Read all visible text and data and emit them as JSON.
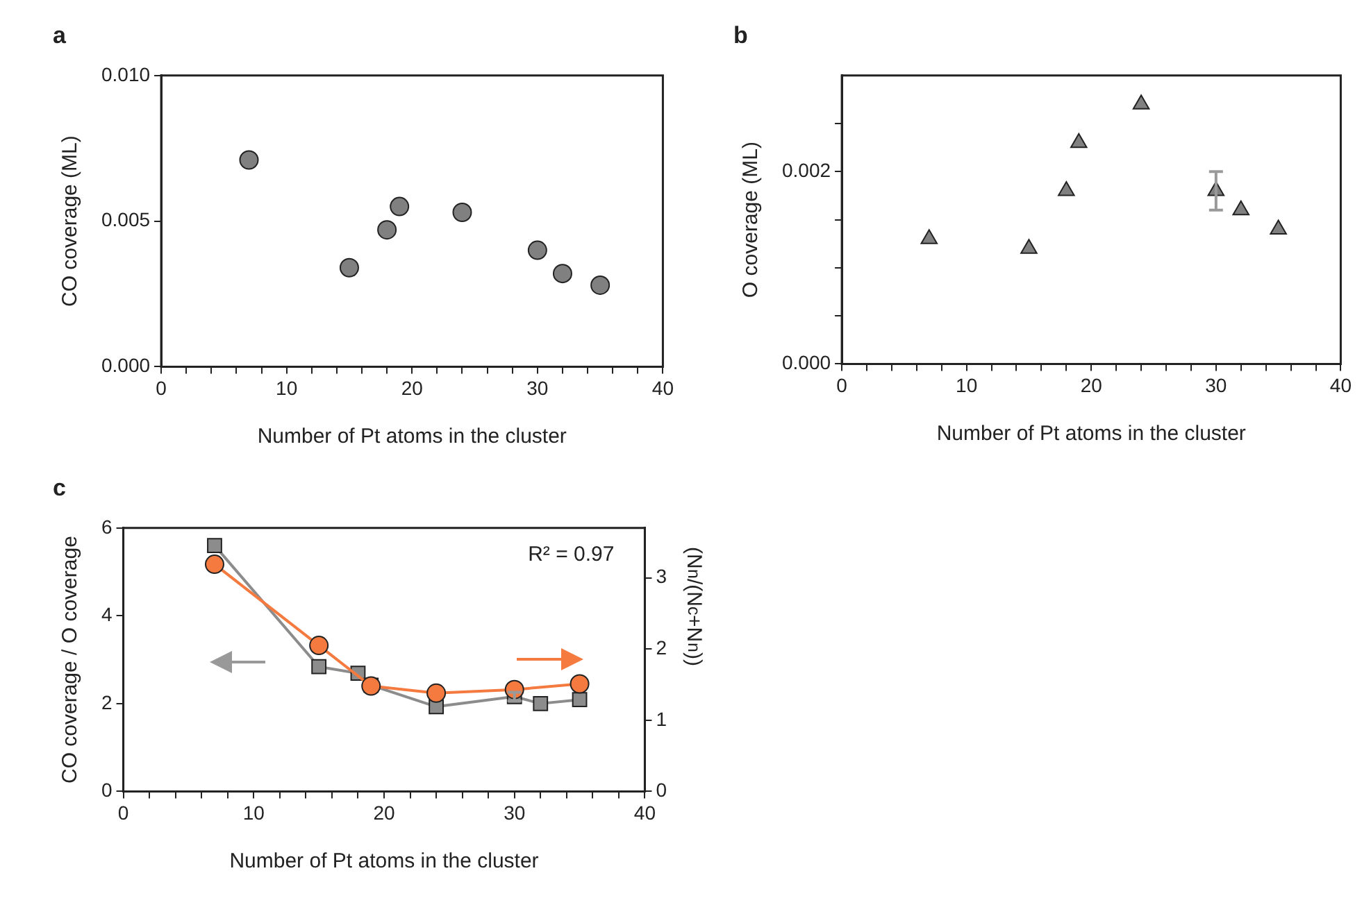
{
  "chart_data": [
    {
      "type": "scatter",
      "title": "a",
      "xlabel": "Number of Pt atoms in the cluster",
      "ylabel": "CO coverage (ML)",
      "marker": "circle",
      "color": "#808080",
      "x": [
        7,
        15,
        18,
        19,
        24,
        30,
        32,
        35
      ],
      "values": [
        0.0071,
        0.0034,
        0.0047,
        0.0055,
        0.0053,
        0.004,
        0.0032,
        0.0028
      ],
      "xlim": [
        0,
        40
      ],
      "xticks": [
        0,
        {
          "value": 2,
          "label": null
        },
        {
          "value": 4,
          "label": null
        },
        {
          "value": 6,
          "label": null
        },
        {
          "value": 8,
          "label": null
        },
        10,
        {
          "value": 12,
          "label": null
        },
        {
          "value": 14,
          "label": null
        },
        {
          "value": 16,
          "label": null
        },
        {
          "value": 18,
          "label": null
        },
        20,
        {
          "value": 22,
          "label": null
        },
        {
          "value": 24,
          "label": null
        },
        {
          "value": 26,
          "label": null
        },
        {
          "value": 28,
          "label": null
        },
        30,
        {
          "value": 32,
          "label": null
        },
        {
          "value": 34,
          "label": null
        },
        {
          "value": 36,
          "label": null
        },
        {
          "value": 38,
          "label": null
        },
        40
      ],
      "ylim": [
        0,
        0.01
      ],
      "yticks": [
        {
          "value": 0,
          "label": "0.000"
        },
        {
          "value": 0.005,
          "label": "0.005"
        },
        {
          "value": 0.01,
          "label": "0.010"
        }
      ],
      "grid": false,
      "legend": false
    },
    {
      "type": "scatter",
      "title": "b",
      "xlabel": "Number of Pt atoms in the cluster",
      "ylabel": "O coverage (ML)",
      "marker": "triangle",
      "color": "#808080",
      "x": [
        7,
        15,
        18,
        19,
        24,
        30,
        32,
        35
      ],
      "values": [
        0.0013,
        0.0012,
        0.0018,
        0.0023,
        0.0027,
        0.0018,
        0.0016,
        0.0014
      ],
      "errors": [
        null,
        null,
        null,
        null,
        null,
        0.0002,
        null,
        null
      ],
      "xlim": [
        0,
        40
      ],
      "xticks": [
        0,
        {
          "value": 2,
          "label": null
        },
        {
          "value": 4,
          "label": null
        },
        {
          "value": 6,
          "label": null
        },
        {
          "value": 8,
          "label": null
        },
        10,
        {
          "value": 12,
          "label": null
        },
        {
          "value": 14,
          "label": null
        },
        {
          "value": 16,
          "label": null
        },
        {
          "value": 18,
          "label": null
        },
        20,
        {
          "value": 22,
          "label": null
        },
        {
          "value": 24,
          "label": null
        },
        {
          "value": 26,
          "label": null
        },
        {
          "value": 28,
          "label": null
        },
        30,
        {
          "value": 32,
          "label": null
        },
        {
          "value": 34,
          "label": null
        },
        {
          "value": 36,
          "label": null
        },
        {
          "value": 38,
          "label": null
        },
        40
      ],
      "ylim": [
        0,
        0.003
      ],
      "yticks": [
        {
          "value": 0,
          "label": "0.000"
        },
        {
          "value": 0.0005,
          "label": null
        },
        {
          "value": 0.001,
          "label": null
        },
        {
          "value": 0.0015,
          "label": null
        },
        {
          "value": 0.002,
          "label": "0.002"
        },
        {
          "value": 0.0025,
          "label": null
        }
      ],
      "grid": false,
      "legend": false
    },
    {
      "type": "line",
      "title": "c",
      "xlabel": "Number of Pt atoms in the cluster",
      "ylabel": "CO coverage / O coverage",
      "y2label": "(N$_{n}$/(N$_{c}$+N$_{n}$))",
      "annotations": [
        "R² = 0.97"
      ],
      "series": [
        {
          "color": "#8c8c8c",
          "marker": "square",
          "x": [
            7,
            15,
            18,
            19,
            24,
            30,
            32,
            35
          ],
          "values": [
            5.6,
            2.84,
            2.69,
            2.42,
            1.93,
            2.16,
            2.0,
            2.09
          ],
          "errors": [
            null,
            null,
            null,
            null,
            null,
            0.1,
            null,
            null
          ]
        },
        {
          "color": "#f47a3f",
          "marker": "circle",
          "axis": "y2",
          "x": [
            7,
            15,
            19,
            24,
            30,
            35
          ],
          "values": [
            3.19,
            2.05,
            1.48,
            1.38,
            1.43,
            1.51
          ]
        }
      ],
      "xlim": [
        0,
        40
      ],
      "xticks": [
        0,
        {
          "value": 2,
          "label": null
        },
        {
          "value": 4,
          "label": null
        },
        {
          "value": 6,
          "label": null
        },
        {
          "value": 8,
          "label": null
        },
        10,
        {
          "value": 12,
          "label": null
        },
        {
          "value": 14,
          "label": null
        },
        {
          "value": 16,
          "label": null
        },
        {
          "value": 18,
          "label": null
        },
        20,
        {
          "value": 22,
          "label": null
        },
        {
          "value": 24,
          "label": null
        },
        {
          "value": 26,
          "label": null
        },
        {
          "value": 28,
          "label": null
        },
        30,
        {
          "value": 32,
          "label": null
        },
        {
          "value": 34,
          "label": null
        },
        {
          "value": 36,
          "label": null
        },
        {
          "value": 38,
          "label": null
        },
        40
      ],
      "ylim": [
        0,
        6
      ],
      "yticks": [
        0,
        2,
        4,
        6
      ],
      "y2lim": [
        0,
        3.7
      ],
      "y2ticks": [
        0,
        1,
        2,
        3
      ],
      "grid": false,
      "legend": false
    }
  ]
}
